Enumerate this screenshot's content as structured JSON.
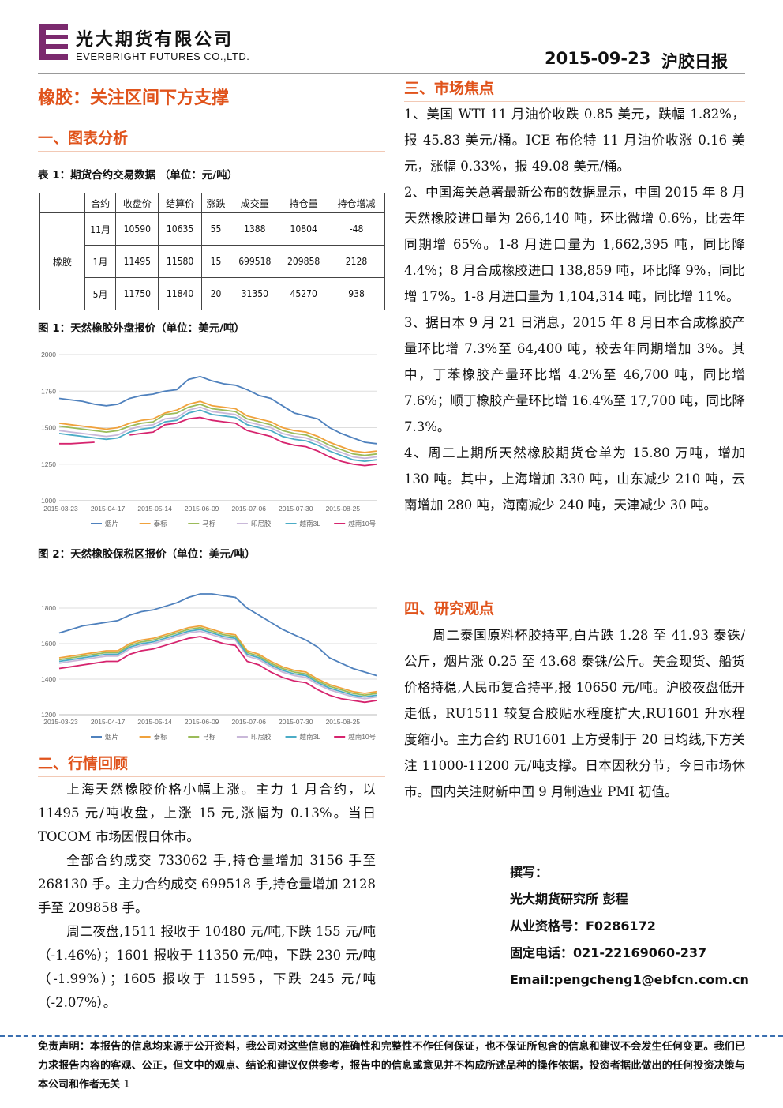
{
  "header": {
    "company_cn": "光大期货有限公司",
    "company_en": "EVERBRIGHT FUTURES CO.,LTD.",
    "date": "2015-09-23",
    "report": "沪胶日报"
  },
  "title": "橡胶：关注区间下方支撑",
  "section1": {
    "heading": "一、图表分析",
    "table_caption": "表 1：期货合约交易数据 （单位：元/吨）"
  },
  "table": {
    "header": [
      "合约",
      "收盘价",
      "结算价",
      "涨跌",
      "成交量",
      "持仓量",
      "持仓增减"
    ],
    "product": "橡胶",
    "rows": [
      [
        "11月",
        10590,
        10635,
        55,
        1388,
        10804,
        -48
      ],
      [
        "1月",
        11495,
        11580,
        15,
        699518,
        209858,
        2128
      ],
      [
        "5月",
        11750,
        11840,
        20,
        31350,
        45270,
        938
      ]
    ]
  },
  "chart_data": [
    {
      "type": "line",
      "title": "图 1：天然橡胶外盘报价（单位：美元/吨）",
      "categories": [
        "2015-03-23",
        null,
        null,
        null,
        "2015-04-17",
        null,
        null,
        null,
        "2015-05-14",
        null,
        null,
        null,
        "2015-06-09",
        null,
        null,
        null,
        "2015-07-06",
        null,
        null,
        null,
        "2015-07-30",
        null,
        null,
        null,
        "2015-08-25",
        null,
        null,
        null
      ],
      "ylim": [
        1000,
        2000
      ],
      "yticks": [
        1000,
        1250,
        1500,
        1750,
        2000
      ],
      "grid": true,
      "series": [
        {
          "name": "烟片",
          "color": "#4f81bd",
          "values": [
            1700,
            1690,
            1680,
            1660,
            1650,
            1660,
            1700,
            1720,
            1730,
            1750,
            1760,
            1830,
            1850,
            1820,
            1800,
            1790,
            1760,
            1720,
            1700,
            1650,
            1600,
            1580,
            1560,
            1500,
            1460,
            1430,
            1400,
            1390
          ]
        },
        {
          "name": "泰标",
          "color": "#f0a23c",
          "values": [
            1530,
            1520,
            1510,
            1500,
            1490,
            1500,
            1530,
            1550,
            1560,
            1600,
            1620,
            1660,
            1680,
            1650,
            1640,
            1630,
            1580,
            1560,
            1540,
            1500,
            1480,
            1470,
            1440,
            1400,
            1370,
            1340,
            1330,
            1340
          ]
        },
        {
          "name": "马标",
          "color": "#9bbb59",
          "values": [
            1510,
            1500,
            1490,
            1480,
            1470,
            1480,
            1510,
            1530,
            1540,
            1590,
            1600,
            1640,
            1660,
            1630,
            1620,
            1610,
            1560,
            1540,
            1520,
            1480,
            1460,
            1450,
            1420,
            1380,
            1350,
            1320,
            1310,
            1320
          ]
        },
        {
          "name": "印尼胶",
          "color": "#c9b8d9",
          "values": [
            1480,
            1470,
            1460,
            1450,
            1440,
            1450,
            1490,
            1510,
            1520,
            1560,
            1570,
            1620,
            1640,
            1610,
            1600,
            1590,
            1540,
            1520,
            1500,
            1460,
            1440,
            1430,
            1400,
            1360,
            1330,
            1300,
            1290,
            1300
          ]
        },
        {
          "name": "越南3L",
          "color": "#4bacc6",
          "values": [
            1460,
            1450,
            1440,
            1430,
            1420,
            1430,
            1470,
            1490,
            1500,
            1540,
            1550,
            1600,
            1620,
            1590,
            1580,
            1570,
            1520,
            1500,
            1480,
            1440,
            1420,
            1410,
            1380,
            1340,
            1310,
            1280,
            1270,
            1280
          ]
        },
        {
          "name": "越南10号",
          "color": "#d6246e",
          "values": [
            1390,
            1390,
            1395,
            1400,
            null,
            null,
            1450,
            1460,
            1470,
            1520,
            1530,
            1560,
            1570,
            1550,
            1540,
            1530,
            1480,
            1460,
            1440,
            1400,
            1380,
            1370,
            1340,
            1300,
            1270,
            1250,
            1240,
            1250
          ]
        }
      ]
    },
    {
      "type": "line",
      "title": "图 2：天然橡胶保税区报价（单位：美元/吨）",
      "categories": [
        "2015-03-23",
        null,
        null,
        null,
        "2015-04-17",
        null,
        null,
        null,
        "2015-05-14",
        null,
        null,
        null,
        "2015-06-09",
        null,
        null,
        null,
        "2015-07-06",
        null,
        null,
        null,
        "2015-07-30",
        null,
        null,
        null,
        "2015-08-25",
        null,
        null,
        null
      ],
      "ylim": [
        1200,
        2000
      ],
      "yticks": [
        1200,
        1400,
        1600,
        1800
      ],
      "grid": true,
      "series": [
        {
          "name": "烟片",
          "color": "#4f81bd",
          "values": [
            1660,
            1680,
            1700,
            1710,
            1720,
            1730,
            1760,
            1780,
            1790,
            1810,
            1830,
            1860,
            1880,
            1880,
            1870,
            1860,
            1800,
            1760,
            1720,
            1680,
            1650,
            1620,
            1580,
            1520,
            1490,
            1460,
            1440,
            1420
          ]
        },
        {
          "name": "泰标",
          "color": "#f0a23c",
          "values": [
            1520,
            1530,
            1540,
            1550,
            1560,
            1560,
            1600,
            1620,
            1630,
            1650,
            1670,
            1690,
            1700,
            1680,
            1660,
            1650,
            1560,
            1540,
            1500,
            1470,
            1450,
            1440,
            1400,
            1370,
            1350,
            1330,
            1320,
            1330
          ]
        },
        {
          "name": "马标",
          "color": "#9bbb59",
          "values": [
            1510,
            1520,
            1530,
            1540,
            1550,
            1550,
            1590,
            1610,
            1620,
            1640,
            1660,
            1680,
            1690,
            1670,
            1650,
            1640,
            1550,
            1530,
            1490,
            1460,
            1440,
            1430,
            1390,
            1360,
            1340,
            1320,
            1310,
            1320
          ]
        },
        {
          "name": "印尼胶",
          "color": "#c9b8d9",
          "values": [
            1490,
            1500,
            1510,
            1520,
            1530,
            1530,
            1570,
            1590,
            1600,
            1620,
            1640,
            1660,
            1670,
            1650,
            1630,
            1620,
            1530,
            1510,
            1470,
            1440,
            1420,
            1410,
            1370,
            1340,
            1320,
            1300,
            1290,
            1300
          ]
        },
        {
          "name": "越南3L",
          "color": "#4bacc6",
          "values": [
            1500,
            1510,
            1520,
            1530,
            1540,
            1540,
            1580,
            1600,
            1610,
            1630,
            1650,
            1670,
            1680,
            1660,
            1640,
            1630,
            1540,
            1520,
            1480,
            1450,
            1430,
            1420,
            1380,
            1350,
            1330,
            1310,
            1300,
            1310
          ]
        },
        {
          "name": "越南10号",
          "color": "#d6246e",
          "values": [
            1460,
            1470,
            1480,
            1490,
            1500,
            1500,
            1540,
            1560,
            1570,
            1590,
            1610,
            1630,
            1640,
            1620,
            1600,
            1590,
            1500,
            1480,
            1440,
            1410,
            1390,
            1380,
            1340,
            1310,
            1290,
            1280,
            1270,
            1280
          ]
        }
      ]
    }
  ],
  "review": {
    "heading": "二、行情回顾",
    "paragraphs": [
      "上海天然橡胶价格小幅上涨。主力 1 月合约，以 11495 元/吨收盘，上涨 15 元,涨幅为 0.13%。当日 TOCOM 市场因假日休市。",
      "全部合约成交 733062 手,持仓量增加 3156 手至 268130 手。主力合约成交 699518 手,持仓量增加 2128 手至 209858 手。",
      "周二夜盘,1511 报收于 10480 元/吨,下跌 155 元/吨（-1.46%）；1601 报收于 11350 元/吨，下跌 230 元/吨（-1.99%）；1605 报收于 11595，下跌 245 元/吨（-2.07%）。"
    ]
  },
  "market": {
    "heading": "三、市场焦点",
    "paragraphs": [
      "1、美国 WTI 11 月油价收跌 0.85 美元，跌幅 1.82%，报 45.83 美元/桶。ICE 布伦特 11 月油价收涨 0.16 美元，涨幅 0.33%，报 49.08 美元/桶。",
      "2、中国海关总署最新公布的数据显示，中国 2015 年 8 月天然橡胶进口量为 266,140 吨，环比微增 0.6%，比去年同期增 65%。1-8 月进口量为 1,662,395 吨，同比降 4.4%；8 月合成橡胶进口 138,859 吨，环比降 9%，同比增 17%。1-8 月进口量为 1,104,314 吨，同比增 11%。",
      "3、据日本 9 月 21 日消息，2015 年 8 月日本合成橡胶产量环比增 7.3%至 64,400 吨，较去年同期增加 3%。其中，丁苯橡胶产量环比增 4.2%至 46,700 吨，同比增 7.6%；顺丁橡胶产量环比增 16.4%至 17,700 吨，同比降 7.3%。",
      "4、周二上期所天然橡胶期货仓单为 15.80 万吨，增加 130 吨。其中，上海增加 330 吨，山东减少 210 吨，云南增加 280 吨，海南减少 240 吨，天津减少 30 吨。"
    ]
  },
  "opinion": {
    "heading": "四、研究观点",
    "paragraph": "周二泰国原料杯胶持平,白片跌 1.28 至 41.93 泰铢/公斤，烟片涨 0.25 至 43.68 泰铢/公斤。美金现货、船货价格持稳,人民币复合持平,报 10650 元/吨。沪胶夜盘低开走低，RU1511 较复合胶贴水程度扩大,RU1601 升水程度缩小。主力合约 RU1601 上方受制于 20 日均线,下方关注 11000-11200 元/吨支撑。日本因秋分节，今日市场休市。国内关注财新中国 9 月制造业 PMI 初值。"
  },
  "author": [
    "撰写：",
    "光大期货研究所 彭程",
    "从业资格号：F0286172",
    "固定电话：021-22169060-237",
    "Email:pengcheng1@ebfcn.com.cn"
  ],
  "disclaimer": "免责声明：本报告的信息均来源于公开资料，我公司对这些信息的准确性和完整性不作任何保证，也不保证所包含的信息和建议不会发生任何变更。我们已力求报告内容的客观、公正，但文中的观点、结论和建议仅供参考，报告中的信息或意见并不构成所述品种的操作依据，投资者据此做出的任何投资决策与本公司和作者无关",
  "page_number": "1"
}
